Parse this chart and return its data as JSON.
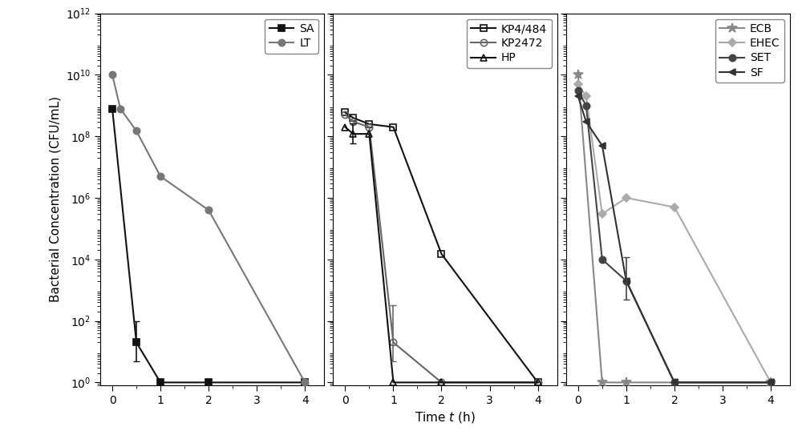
{
  "panel1": {
    "SA": {
      "x": [
        0,
        0.5,
        1,
        2,
        4
      ],
      "y": [
        800000000.0,
        20,
        1,
        1,
        1
      ],
      "err_x": 0.5,
      "err_y": 20,
      "err_lo": 15,
      "err_hi": 80,
      "color": "#111111",
      "marker": "s",
      "markersize": 6,
      "label": "SA",
      "linestyle": "-",
      "linewidth": 1.5,
      "fillstyle": "full"
    },
    "LT": {
      "x": [
        0,
        0.1667,
        0.5,
        1,
        2,
        4
      ],
      "y": [
        10000000000.0,
        800000000.0,
        150000000.0,
        5000000.0,
        400000.0,
        1
      ],
      "color": "#777777",
      "marker": "o",
      "markersize": 6,
      "label": "LT",
      "linestyle": "-",
      "linewidth": 1.5,
      "fillstyle": "full"
    }
  },
  "panel2": {
    "KP4484": {
      "x": [
        0,
        0.1667,
        0.5,
        1,
        2,
        4
      ],
      "y": [
        600000000.0,
        400000000.0,
        250000000.0,
        200000000.0,
        15000.0,
        1
      ],
      "color": "#111111",
      "marker": "s",
      "markersize": 6,
      "label": "KP4/484",
      "linestyle": "-",
      "linewidth": 1.5,
      "fillstyle": "none"
    },
    "KP2472": {
      "x": [
        0,
        0.1667,
        0.5,
        1,
        2,
        4
      ],
      "y": [
        500000000.0,
        300000000.0,
        200000000.0,
        20,
        1,
        1
      ],
      "err_x": 1,
      "err_y": 20,
      "err_lo": 15,
      "err_hi": 300,
      "color": "#666666",
      "marker": "o",
      "markersize": 6,
      "label": "KP2472",
      "linestyle": "-",
      "linewidth": 1.5,
      "fillstyle": "none"
    },
    "HP": {
      "x": [
        0,
        0.1667,
        0.5,
        1,
        2,
        4
      ],
      "y": [
        200000000.0,
        120000000.0,
        120000000.0,
        1,
        1,
        1
      ],
      "err_x": 0.1667,
      "err_y": 120000000.0,
      "err_lo": 60000000.0,
      "err_hi": 150000000.0,
      "color": "#111111",
      "marker": "^",
      "markersize": 6,
      "label": "HP",
      "linestyle": "-",
      "linewidth": 1.5,
      "fillstyle": "none"
    }
  },
  "panel3": {
    "ECB": {
      "x": [
        0,
        0.5,
        1,
        4
      ],
      "y": [
        10000000000.0,
        1,
        1,
        1
      ],
      "color": "#888888",
      "marker": "*",
      "markersize": 9,
      "label": "ECB",
      "linestyle": "-",
      "linewidth": 1.5,
      "fillstyle": "full"
    },
    "EHEC": {
      "x": [
        0,
        0.1667,
        0.5,
        1,
        2,
        4
      ],
      "y": [
        5000000000.0,
        2000000000.0,
        300000.0,
        1000000.0,
        500000.0,
        1
      ],
      "color": "#aaaaaa",
      "marker": "D",
      "markersize": 5,
      "label": "EHEC",
      "linestyle": "-",
      "linewidth": 1.5,
      "fillstyle": "full"
    },
    "SET": {
      "x": [
        0,
        0.1667,
        0.5,
        1,
        2,
        4
      ],
      "y": [
        3000000000.0,
        1000000000.0,
        10000.0,
        2000.0,
        1,
        1
      ],
      "err_x": 1,
      "err_y": 2000.0,
      "err_lo": 1500.0,
      "err_hi": 10000.0,
      "color": "#444444",
      "marker": "o",
      "markersize": 6,
      "label": "SET",
      "linestyle": "-",
      "linewidth": 1.5,
      "fillstyle": "full"
    },
    "SF": {
      "x": [
        0,
        0.1667,
        0.5,
        1,
        2,
        4
      ],
      "y": [
        2000000000.0,
        300000000.0,
        50000000.0,
        2000.0,
        1,
        1
      ],
      "color": "#333333",
      "marker": "<",
      "markersize": 6,
      "label": "SF",
      "linestyle": "-",
      "linewidth": 1.5,
      "fillstyle": "full"
    }
  },
  "ylim": [
    0.8,
    1000000000000.0
  ],
  "yticks": [
    1,
    100,
    10000,
    1000000,
    100000000,
    10000000000,
    1000000000000
  ],
  "ytick_labels": [
    "10$^0$",
    "10$^2$",
    "10$^4$",
    "10$^6$",
    "10$^8$",
    "10$^{10}$",
    "10$^{12}$"
  ],
  "xlim": [
    -0.25,
    4.4
  ],
  "xticks": [
    0,
    1,
    2,
    3,
    4
  ],
  "ylabel": "Bacterial Concentration (CFU/mL)",
  "xlabel": "Time $t$ (h)",
  "label_fontsize": 11,
  "tick_fontsize": 10,
  "legend_fontsize": 10
}
